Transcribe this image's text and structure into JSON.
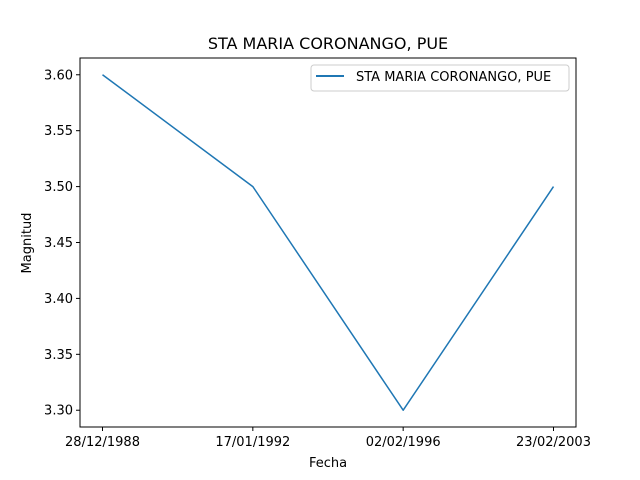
{
  "chart_data": {
    "type": "line",
    "title": "STA MARIA CORONANGO, PUE",
    "xlabel": "Fecha",
    "ylabel": "Magnitud",
    "categories": [
      "28/12/1988",
      "17/01/1992",
      "02/02/1996",
      "23/02/2003"
    ],
    "series": [
      {
        "name": "STA MARIA CORONANGO, PUE",
        "values": [
          3.6,
          3.5,
          3.3,
          3.5
        ],
        "color": "#1f77b4"
      }
    ],
    "yticks": [
      "3.30",
      "3.35",
      "3.40",
      "3.45",
      "3.50",
      "3.55",
      "3.60"
    ],
    "ylim": [
      3.285,
      3.615
    ],
    "grid": false,
    "legend_position": "top-right"
  }
}
